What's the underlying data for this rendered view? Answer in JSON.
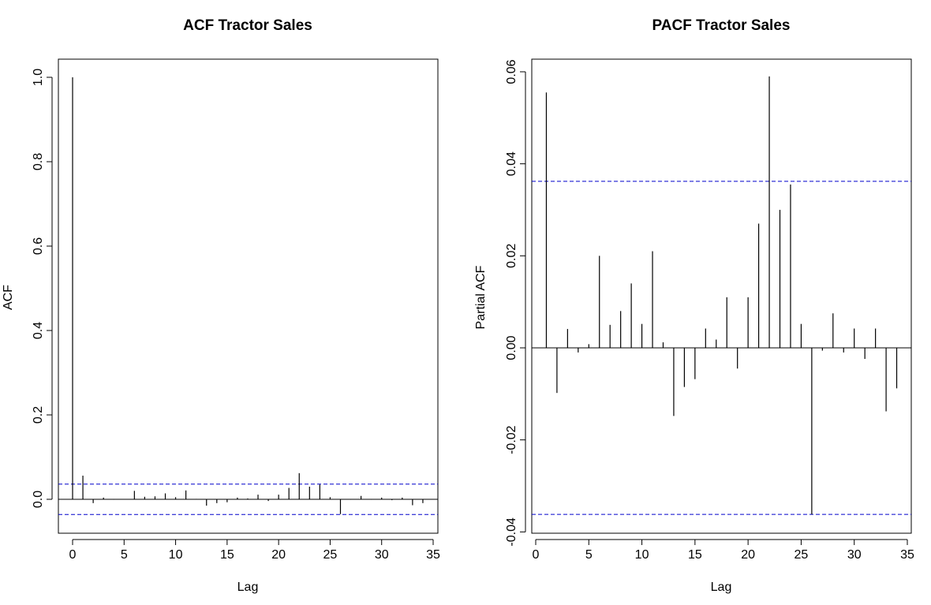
{
  "charts": [
    {
      "chart_data": {
        "type": "bar",
        "title": "ACF Tractor Sales",
        "xlabel": "Lag",
        "ylabel": "ACF",
        "xlim": [
          0,
          35
        ],
        "ylim": [
          -0.08,
          1.0
        ],
        "xticks": [
          "0",
          "5",
          "10",
          "15",
          "20",
          "25",
          "30",
          "35"
        ],
        "yticks": [
          "0.0",
          "0.2",
          "0.4",
          "0.6",
          "0.8",
          "1.0"
        ],
        "lags": [
          0,
          1,
          2,
          3,
          4,
          5,
          6,
          7,
          8,
          9,
          10,
          11,
          12,
          13,
          14,
          15,
          16,
          17,
          18,
          19,
          20,
          21,
          22,
          23,
          24,
          25,
          26,
          27,
          28,
          29,
          30,
          31,
          32,
          33,
          34
        ],
        "values": [
          1.0,
          0.056,
          -0.009,
          0.004,
          -0.001,
          0.0,
          0.02,
          0.006,
          0.007,
          0.014,
          0.005,
          0.021,
          0.001,
          -0.015,
          -0.009,
          -0.007,
          0.004,
          0.002,
          0.011,
          -0.004,
          0.011,
          0.027,
          0.062,
          0.03,
          0.035,
          0.005,
          -0.035,
          -0.001,
          0.008,
          -0.001,
          0.004,
          -0.002,
          0.004,
          -0.014,
          -0.009
        ],
        "conf_band": 0.036,
        "grid": false,
        "colors": {
          "bars": "#000000",
          "conf_band": "#0000cc",
          "zero_line": "#000000"
        }
      }
    },
    {
      "chart_data": {
        "type": "bar",
        "title": "PACF Tractor Sales",
        "xlabel": "Lag",
        "ylabel": "Partial ACF",
        "xlim": [
          0,
          35
        ],
        "ylim": [
          -0.04,
          0.06
        ],
        "xticks": [
          "0",
          "5",
          "10",
          "15",
          "20",
          "25",
          "30",
          "35"
        ],
        "yticks": [
          "-0.04",
          "-0.02",
          "0.00",
          "0.02",
          "0.04",
          "0.06"
        ],
        "lags": [
          1,
          2,
          3,
          4,
          5,
          6,
          7,
          8,
          9,
          10,
          11,
          12,
          13,
          14,
          15,
          16,
          17,
          18,
          19,
          20,
          21,
          22,
          23,
          24,
          25,
          26,
          27,
          28,
          29,
          30,
          31,
          32,
          33,
          34
        ],
        "values": [
          0.0555,
          -0.0098,
          0.0041,
          -0.001,
          0.0008,
          0.02,
          0.005,
          0.008,
          0.014,
          0.0052,
          0.021,
          0.0012,
          -0.0148,
          -0.0085,
          -0.0068,
          0.0042,
          0.0018,
          0.011,
          -0.0045,
          0.011,
          0.027,
          0.059,
          0.03,
          0.0355,
          0.0052,
          -0.0362,
          -0.0006,
          0.0075,
          -0.001,
          0.0042,
          -0.0024,
          0.0042,
          -0.0138,
          -0.0088
        ],
        "conf_band": 0.0362,
        "grid": false,
        "colors": {
          "bars": "#000000",
          "conf_band": "#0000cc",
          "zero_line": "#000000"
        }
      }
    }
  ]
}
